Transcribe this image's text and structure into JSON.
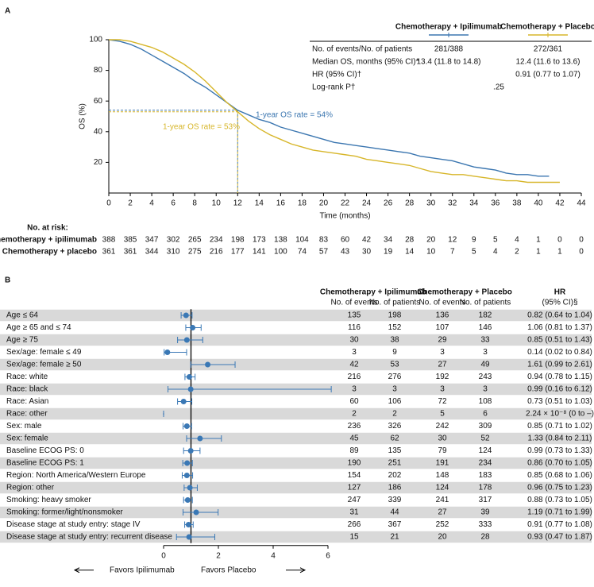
{
  "chart_data": [
    {
      "type": "line",
      "panel": "A",
      "xlabel": "Time (months)",
      "ylabel": "OS (%)",
      "xlim": [
        0,
        44
      ],
      "xticks": [
        0,
        2,
        4,
        6,
        8,
        10,
        12,
        14,
        16,
        18,
        20,
        22,
        24,
        26,
        28,
        30,
        32,
        34,
        36,
        38,
        40,
        42,
        44
      ],
      "ylim": [
        0,
        100
      ],
      "yticks": [
        20,
        40,
        60,
        80,
        100
      ],
      "series": [
        {
          "name": "Chemotherapy + Ipilimumab",
          "color": "#3b76b0",
          "x": [
            0,
            1,
            2,
            3,
            4,
            5,
            6,
            7,
            8,
            9,
            10,
            11,
            12,
            13,
            14,
            15,
            16,
            17,
            18,
            19,
            20,
            21,
            22,
            23,
            24,
            25,
            26,
            27,
            28,
            29,
            30,
            31,
            32,
            33,
            34,
            35,
            36,
            37,
            38,
            39,
            40,
            41
          ],
          "values": [
            100,
            99,
            97,
            94,
            90,
            86,
            82,
            78,
            73,
            69,
            64,
            59,
            54,
            51,
            48,
            46,
            43,
            41,
            39,
            37,
            35,
            33,
            32,
            31,
            30,
            29,
            28,
            27,
            26,
            24,
            23,
            22,
            21,
            19,
            17,
            16,
            15,
            13,
            12,
            12,
            11,
            11
          ]
        },
        {
          "name": "Chemotherapy + Placebo",
          "color": "#d7b62a",
          "x": [
            0,
            1,
            2,
            3,
            4,
            5,
            6,
            7,
            8,
            9,
            10,
            11,
            12,
            13,
            14,
            15,
            16,
            17,
            18,
            19,
            20,
            21,
            22,
            23,
            24,
            25,
            26,
            27,
            28,
            29,
            30,
            31,
            32,
            33,
            34,
            35,
            36,
            37,
            38,
            39,
            40,
            41,
            42
          ],
          "values": [
            100,
            100,
            99,
            97,
            95,
            92,
            88,
            84,
            79,
            73,
            66,
            59,
            53,
            47,
            42,
            38,
            35,
            32,
            30,
            28,
            27,
            26,
            25,
            24,
            22,
            21,
            20,
            19,
            18,
            16,
            14,
            13,
            12,
            12,
            11,
            10,
            9,
            8,
            8,
            7,
            7,
            7,
            7
          ]
        }
      ],
      "reference_lines": [
        {
          "x": 12,
          "y": 54,
          "color": "#3b76b0"
        },
        {
          "x": 12,
          "y": 53,
          "color": "#d7b62a"
        }
      ],
      "annotations": [
        {
          "text": "1-year OS rate = 54%",
          "color": "#3b76b0"
        },
        {
          "text": "1-year OS rate = 53%",
          "color": "#d7b62a"
        }
      ],
      "stats": {
        "rows": [
          {
            "label": "No. of events/No. of patients",
            "values": [
              "281/388",
              "272/361"
            ]
          },
          {
            "label": "Median OS, months (95% CI)*",
            "values": [
              "13.4 (11.8 to 14.8)",
              "12.4 (11.6 to 13.6)"
            ]
          },
          {
            "label": "HR (95% CI)†",
            "values": [
              "0.91 (0.77 to 1.07)"
            ]
          },
          {
            "label": "Log-rank P†",
            "values": [
              ".25"
            ]
          }
        ]
      },
      "at_risk": {
        "title": "No. at risk:",
        "rows": [
          {
            "label": "Chemotherapy + ipilimumab",
            "values": [
              388,
              385,
              347,
              302,
              265,
              234,
              198,
              173,
              138,
              104,
              83,
              60,
              42,
              34,
              28,
              20,
              12,
              9,
              5,
              4,
              1,
              0,
              0
            ]
          },
          {
            "label": "Chemotherapy + placebo",
            "values": [
              361,
              361,
              344,
              310,
              275,
              216,
              177,
              141,
              100,
              74,
              57,
              43,
              30,
              19,
              14,
              10,
              7,
              5,
              4,
              2,
              1,
              1,
              0
            ]
          }
        ]
      }
    },
    {
      "type": "forest",
      "panel": "B",
      "color": "#3a78b5",
      "xlim": [
        0,
        6
      ],
      "xticks": [
        0,
        2,
        4,
        6
      ],
      "reference_x": 1,
      "groups": [
        "Chemotherapy + Ipilimumab",
        "Chemotherapy + Placebo",
        "HR"
      ],
      "subheaders": [
        "No. of events",
        "No. of patients",
        "No. of events",
        "No. of patients",
        "(95% CI)§"
      ],
      "favors": [
        "Favors Ipilimumab",
        "Favors Placebo"
      ],
      "rows": [
        {
          "label": "Age ≤ 64",
          "counts": [
            135,
            198,
            136,
            182
          ],
          "hr": 0.82,
          "ci": [
            0.64,
            1.04
          ],
          "value_label": "0.82 (0.64 to 1.04)"
        },
        {
          "label": "Age ≥ 65 and ≤ 74",
          "counts": [
            116,
            152,
            107,
            146
          ],
          "hr": 1.06,
          "ci": [
            0.81,
            1.37
          ],
          "value_label": "1.06 (0.81 to 1.37)"
        },
        {
          "label": "Age ≥ 75",
          "counts": [
            30,
            38,
            29,
            33
          ],
          "hr": 0.85,
          "ci": [
            0.51,
            1.43
          ],
          "value_label": "0.85 (0.51 to 1.43)"
        },
        {
          "label": "Sex/age: female ≤ 49",
          "counts": [
            3,
            9,
            3,
            3
          ],
          "hr": 0.14,
          "ci": [
            0.02,
            0.84
          ],
          "value_label": "0.14 (0.02 to 0.84)"
        },
        {
          "label": "Sex/age: female ≥ 50",
          "counts": [
            42,
            53,
            27,
            49
          ],
          "hr": 1.61,
          "ci": [
            0.99,
            2.61
          ],
          "value_label": "1.61 (0.99 to 2.61)"
        },
        {
          "label": "Race: white",
          "counts": [
            216,
            276,
            192,
            243
          ],
          "hr": 0.94,
          "ci": [
            0.78,
            1.15
          ],
          "value_label": "0.94 (0.78 to 1.15)"
        },
        {
          "label": "Race: black",
          "counts": [
            3,
            3,
            3,
            3
          ],
          "hr": 0.99,
          "ci": [
            0.16,
            6.12
          ],
          "value_label": "0.99 (0.16 to 6.12)"
        },
        {
          "label": "Race: Asian",
          "counts": [
            60,
            106,
            72,
            108
          ],
          "hr": 0.73,
          "ci": [
            0.51,
            1.03
          ],
          "value_label": "0.73 (0.51 to 1.03)"
        },
        {
          "label": "Race: other",
          "counts": [
            2,
            2,
            5,
            6
          ],
          "hr": 2.24e-08,
          "ci": [
            0,
            null
          ],
          "value_label": "2.24 × 10⁻⁸ (0 to –)"
        },
        {
          "label": "Sex: male",
          "counts": [
            236,
            326,
            242,
            309
          ],
          "hr": 0.85,
          "ci": [
            0.71,
            1.02
          ],
          "value_label": "0.85 (0.71 to 1.02)"
        },
        {
          "label": "Sex: female",
          "counts": [
            45,
            62,
            30,
            52
          ],
          "hr": 1.33,
          "ci": [
            0.84,
            2.11
          ],
          "value_label": "1.33 (0.84 to 2.11)"
        },
        {
          "label": "Baseline ECOG PS: 0",
          "counts": [
            89,
            135,
            79,
            124
          ],
          "hr": 0.99,
          "ci": [
            0.73,
            1.33
          ],
          "value_label": "0.99 (0.73 to 1.33)"
        },
        {
          "label": "Baseline ECOG PS: 1",
          "counts": [
            190,
            251,
            191,
            234
          ],
          "hr": 0.86,
          "ci": [
            0.7,
            1.05
          ],
          "value_label": "0.86 (0.70 to 1.05)"
        },
        {
          "label": "Region: North America/Western Europe",
          "counts": [
            154,
            202,
            148,
            183
          ],
          "hr": 0.85,
          "ci": [
            0.68,
            1.06
          ],
          "value_label": "0.85 (0.68 to 1.06)"
        },
        {
          "label": "Region: other",
          "counts": [
            127,
            186,
            124,
            178
          ],
          "hr": 0.96,
          "ci": [
            0.75,
            1.23
          ],
          "value_label": "0.96 (0.75 to 1.23)"
        },
        {
          "label": "Smoking: heavy smoker",
          "counts": [
            247,
            339,
            241,
            317
          ],
          "hr": 0.88,
          "ci": [
            0.73,
            1.05
          ],
          "value_label": "0.88 (0.73 to 1.05)"
        },
        {
          "label": "Smoking: former/light/nonsmoker",
          "counts": [
            31,
            44,
            27,
            39
          ],
          "hr": 1.19,
          "ci": [
            0.71,
            1.99
          ],
          "value_label": "1.19 (0.71 to 1.99)"
        },
        {
          "label": "Disease stage at study entry: stage IV",
          "counts": [
            266,
            367,
            252,
            333
          ],
          "hr": 0.91,
          "ci": [
            0.77,
            1.08
          ],
          "value_label": "0.91 (0.77 to 1.08)"
        },
        {
          "label": "Disease stage at study entry: recurrent disease",
          "counts": [
            15,
            21,
            20,
            28
          ],
          "hr": 0.93,
          "ci": [
            0.47,
            1.87
          ],
          "value_label": "0.93 (0.47 to 1.87)"
        }
      ]
    }
  ]
}
